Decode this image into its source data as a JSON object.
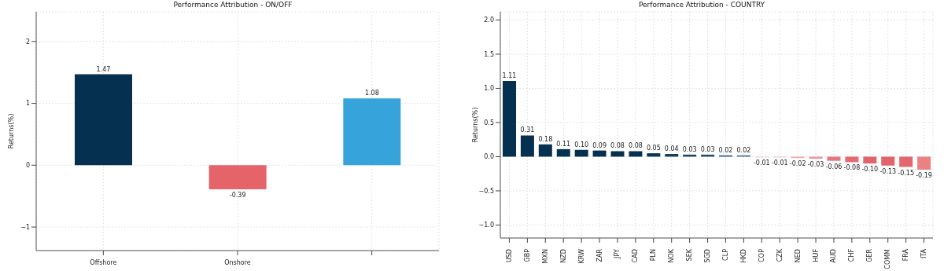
{
  "chart_data": [
    {
      "type": "bar",
      "title": "Performance Attribution - ON/OFF",
      "ylabel": "Returns(%)",
      "categories": [
        "Offshore",
        "Onshore",
        null
      ],
      "values": [
        1.47,
        -0.39,
        1.08
      ],
      "colors": [
        "#06304f",
        "#e5646a",
        "#36a3db"
      ],
      "value_labels": [
        "1.47",
        "-0.39",
        "1.08"
      ],
      "ylim": [
        -1.38,
        2.48
      ],
      "yticks": [
        {
          "value": -1,
          "label": "−1"
        },
        0,
        1,
        2
      ],
      "grid": true
    },
    {
      "type": "bar",
      "title": "Performance Attribution - COUNTRY",
      "ylabel": "Returns(%)",
      "categories": [
        "USD",
        "GBP",
        "MXN",
        "NZD",
        "KRW",
        "ZAR",
        "JPY",
        "CAD",
        "PLN",
        "NOK",
        "SEK",
        "SGD",
        "CLP",
        "HKD",
        "COP",
        "CZK",
        "NED",
        "HUF",
        "AUD",
        "CHF",
        "GER",
        "COMM",
        "FRA",
        "ITA"
      ],
      "values": [
        1.11,
        0.31,
        0.18,
        0.11,
        0.1,
        0.09,
        0.08,
        0.08,
        0.05,
        0.04,
        0.03,
        0.03,
        0.02,
        0.02,
        -0.01,
        -0.01,
        -0.02,
        -0.03,
        -0.06,
        -0.08,
        -0.1,
        -0.13,
        -0.15,
        -0.19
      ],
      "colors": [
        "#06304f",
        "#06304f",
        "#06304f",
        "#06304f",
        "#06304f",
        "#06304f",
        "#06304f",
        "#06304f",
        "#0c3554",
        "#15405e",
        "#1c4766",
        "#244f6c",
        "#3a5f7c",
        "#4a6d88",
        "#f5c4c6",
        "#f3b8ba",
        "#f0abad",
        "#ec979b",
        "#e8777c",
        "#e46a70",
        "#e2636a",
        "#e2636a",
        "#e4676d",
        "#ec8184"
      ],
      "value_labels": [
        "1.11",
        "0.31",
        "0.18",
        "0.11",
        "0.10",
        "0.09",
        "0.08",
        "0.08",
        "0.05",
        "0.04",
        "0.03",
        "0.03",
        "0.02",
        "0.02",
        "-0.01",
        "-0.01",
        "-0.02",
        "-0.03",
        "-0.06",
        "-0.08",
        "-0.10",
        "-0.13",
        "-0.15",
        "-0.19"
      ],
      "ylim": [
        -1.19,
        2.12
      ],
      "yticks": [
        {
          "value": -1,
          "label": "−1.0"
        },
        {
          "value": -0.5,
          "label": "−0.5"
        },
        {
          "value": 0,
          "label": "0.0"
        },
        {
          "value": 0.5,
          "label": "0.5"
        },
        {
          "value": 1,
          "label": "1.0"
        },
        {
          "value": 1.5,
          "label": "1.5"
        },
        {
          "value": 2,
          "label": "2.0"
        }
      ],
      "grid": true
    }
  ]
}
